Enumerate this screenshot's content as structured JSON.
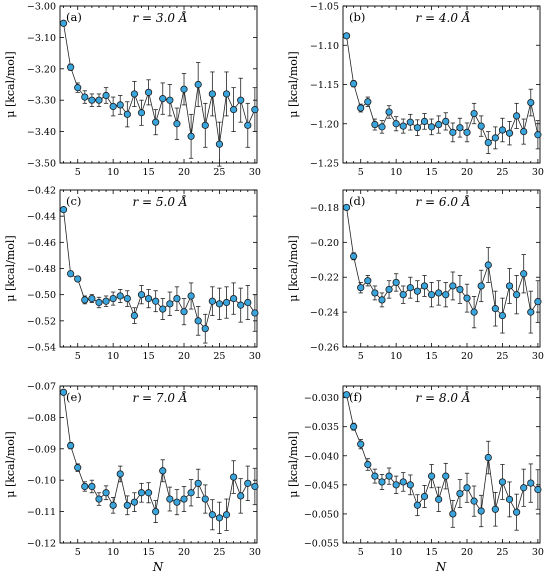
{
  "xlabel": "N",
  "ylabel": "μ [kcal/mol]",
  "chart_data": [
    {
      "type": "scatter",
      "panel": "(a)",
      "title": "r = 3.0 Å",
      "ylabel": "μ [kcal/mol]",
      "xlim": [
        2.5,
        30.3
      ],
      "ylim": [
        -3.5,
        -3.0
      ],
      "yticks": [
        -3.0,
        -3.1,
        -3.2,
        -3.3,
        -3.4,
        -3.5
      ],
      "ytick_labels": [
        "−3.00",
        "−3.10",
        "−3.20",
        "−3.30",
        "−3.40",
        "−3.50"
      ],
      "xticks": [
        5,
        10,
        15,
        20,
        25,
        30
      ],
      "x": [
        3,
        4,
        5,
        6,
        7,
        8,
        9,
        10,
        11,
        12,
        13,
        14,
        15,
        16,
        17,
        18,
        19,
        20,
        21,
        22,
        23,
        24,
        25,
        26,
        27,
        28,
        29,
        30
      ],
      "y": [
        -3.055,
        -3.195,
        -3.26,
        -3.29,
        -3.3,
        -3.3,
        -3.285,
        -3.32,
        -3.315,
        -3.345,
        -3.28,
        -3.34,
        -3.275,
        -3.37,
        -3.295,
        -3.3,
        -3.375,
        -3.265,
        -3.415,
        -3.25,
        -3.38,
        -3.28,
        -3.44,
        -3.28,
        -3.33,
        -3.3,
        -3.38,
        -3.33
      ],
      "err": [
        0.005,
        0.01,
        0.015,
        0.02,
        0.02,
        0.02,
        0.025,
        0.03,
        0.03,
        0.04,
        0.04,
        0.04,
        0.04,
        0.04,
        0.05,
        0.05,
        0.05,
        0.05,
        0.07,
        0.07,
        0.07,
        0.07,
        0.07,
        0.07,
        0.07,
        0.07,
        0.07,
        0.07
      ]
    },
    {
      "type": "scatter",
      "panel": "(b)",
      "title": "r = 4.0 Å",
      "ylabel": "μ [kcal/mol]",
      "xlim": [
        2.5,
        30.3
      ],
      "ylim": [
        -1.25,
        -1.05
      ],
      "yticks": [
        -1.05,
        -1.1,
        -1.15,
        -1.2,
        -1.25
      ],
      "ytick_labels": [
        "−1.05",
        "−1.10",
        "−1.15",
        "−1.20",
        "−1.25"
      ],
      "xticks": [
        5,
        10,
        15,
        20,
        25,
        30
      ],
      "x": [
        3,
        4,
        5,
        6,
        7,
        8,
        9,
        10,
        11,
        12,
        13,
        14,
        15,
        16,
        17,
        18,
        19,
        20,
        21,
        22,
        23,
        24,
        25,
        26,
        27,
        28,
        29,
        30
      ],
      "y": [
        -1.088,
        -1.149,
        -1.18,
        -1.172,
        -1.201,
        -1.204,
        -1.185,
        -1.2,
        -1.203,
        -1.198,
        -1.205,
        -1.197,
        -1.204,
        -1.201,
        -1.197,
        -1.211,
        -1.205,
        -1.211,
        -1.187,
        -1.203,
        -1.224,
        -1.218,
        -1.208,
        -1.212,
        -1.19,
        -1.21,
        -1.173,
        -1.214
      ],
      "err": [
        0.002,
        0.004,
        0.005,
        0.006,
        0.007,
        0.008,
        0.008,
        0.009,
        0.009,
        0.01,
        0.01,
        0.01,
        0.01,
        0.011,
        0.011,
        0.012,
        0.012,
        0.012,
        0.013,
        0.013,
        0.014,
        0.014,
        0.015,
        0.015,
        0.016,
        0.016,
        0.017,
        0.018
      ]
    },
    {
      "type": "scatter",
      "panel": "(c)",
      "title": "r = 5.0 Å",
      "ylabel": "μ [kcal/mol]",
      "xlim": [
        2.5,
        30.3
      ],
      "ylim": [
        -0.54,
        -0.42
      ],
      "yticks": [
        -0.42,
        -0.44,
        -0.46,
        -0.48,
        -0.5,
        -0.52,
        -0.54
      ],
      "ytick_labels": [
        "−0.42",
        "−0.44",
        "−0.46",
        "−0.48",
        "−0.50",
        "−0.52",
        "−0.54"
      ],
      "xticks": [
        5,
        10,
        15,
        20,
        25,
        30
      ],
      "x": [
        3,
        4,
        5,
        6,
        7,
        8,
        9,
        10,
        11,
        12,
        13,
        14,
        15,
        16,
        17,
        18,
        19,
        20,
        21,
        22,
        23,
        24,
        25,
        26,
        27,
        28,
        29,
        30
      ],
      "y": [
        -0.435,
        -0.484,
        -0.488,
        -0.504,
        -0.503,
        -0.506,
        -0.505,
        -0.503,
        -0.501,
        -0.503,
        -0.516,
        -0.5,
        -0.503,
        -0.505,
        -0.511,
        -0.507,
        -0.503,
        -0.513,
        -0.501,
        -0.52,
        -0.526,
        -0.505,
        -0.507,
        -0.506,
        -0.503,
        -0.508,
        -0.506,
        -0.514
      ],
      "err": [
        0.001,
        0.002,
        0.002,
        0.003,
        0.003,
        0.004,
        0.004,
        0.005,
        0.005,
        0.006,
        0.006,
        0.007,
        0.007,
        0.008,
        0.008,
        0.009,
        0.009,
        0.01,
        0.01,
        0.011,
        0.011,
        0.011,
        0.012,
        0.012,
        0.012,
        0.013,
        0.013,
        0.014
      ]
    },
    {
      "type": "scatter",
      "panel": "(d)",
      "title": "r = 6.0 Å",
      "ylabel": "μ [kcal/mol]",
      "xlim": [
        2.5,
        30.3
      ],
      "ylim": [
        -0.26,
        -0.17
      ],
      "yticks": [
        -0.18,
        -0.2,
        -0.22,
        -0.24,
        -0.26
      ],
      "ytick_labels": [
        "−0.18",
        "−0.20",
        "−0.22",
        "−0.24",
        "−0.26"
      ],
      "xticks": [
        5,
        10,
        15,
        20,
        25,
        30
      ],
      "x": [
        3,
        4,
        5,
        6,
        7,
        8,
        9,
        10,
        11,
        12,
        13,
        14,
        15,
        16,
        17,
        18,
        19,
        20,
        21,
        22,
        23,
        24,
        25,
        26,
        27,
        28,
        29,
        30
      ],
      "y": [
        -0.18,
        -0.208,
        -0.226,
        -0.222,
        -0.229,
        -0.233,
        -0.227,
        -0.223,
        -0.23,
        -0.226,
        -0.228,
        -0.225,
        -0.23,
        -0.229,
        -0.23,
        -0.225,
        -0.227,
        -0.232,
        -0.24,
        -0.225,
        -0.213,
        -0.238,
        -0.242,
        -0.225,
        -0.23,
        -0.218,
        -0.24,
        -0.234
      ],
      "err": [
        0.001,
        0.002,
        0.003,
        0.003,
        0.004,
        0.004,
        0.005,
        0.005,
        0.005,
        0.006,
        0.006,
        0.006,
        0.007,
        0.007,
        0.007,
        0.008,
        0.008,
        0.008,
        0.009,
        0.009,
        0.01,
        0.01,
        0.01,
        0.01,
        0.011,
        0.011,
        0.012,
        0.012
      ]
    },
    {
      "type": "scatter",
      "panel": "(e)",
      "title": "r = 7.0 Å",
      "ylabel": "μ [kcal/mol]",
      "xlim": [
        2.5,
        30.3
      ],
      "ylim": [
        -0.12,
        -0.07
      ],
      "yticks": [
        -0.07,
        -0.08,
        -0.09,
        -0.1,
        -0.11,
        -0.12
      ],
      "ytick_labels": [
        "−0.07",
        "−0.08",
        "−0.09",
        "−0.10",
        "−0.11",
        "−0.12"
      ],
      "xticks": [
        5,
        10,
        15,
        20,
        25,
        30
      ],
      "x": [
        3,
        4,
        5,
        6,
        7,
        8,
        9,
        10,
        11,
        12,
        13,
        14,
        15,
        16,
        17,
        18,
        19,
        20,
        21,
        22,
        23,
        24,
        25,
        26,
        27,
        28,
        29,
        30
      ],
      "y": [
        -0.072,
        -0.089,
        -0.096,
        -0.102,
        -0.102,
        -0.106,
        -0.104,
        -0.108,
        -0.098,
        -0.108,
        -0.107,
        -0.104,
        -0.104,
        -0.11,
        -0.097,
        -0.106,
        -0.107,
        -0.106,
        -0.104,
        -0.101,
        -0.106,
        -0.111,
        -0.112,
        -0.111,
        -0.099,
        -0.105,
        -0.101,
        -0.102
      ],
      "err": [
        0.0005,
        0.001,
        0.0012,
        0.0015,
        0.002,
        0.002,
        0.0022,
        0.0025,
        0.0025,
        0.003,
        0.003,
        0.003,
        0.0032,
        0.0035,
        0.0035,
        0.0038,
        0.004,
        0.004,
        0.0042,
        0.0045,
        0.0045,
        0.0048,
        0.005,
        0.005,
        0.0052,
        0.0055,
        0.0055,
        0.0058
      ]
    },
    {
      "type": "scatter",
      "panel": "(f)",
      "title": "r = 8.0 Å",
      "ylabel": "μ [kcal/mol]",
      "xlim": [
        2.5,
        30.3
      ],
      "ylim": [
        -0.055,
        -0.028
      ],
      "yticks": [
        -0.03,
        -0.035,
        -0.04,
        -0.045,
        -0.05,
        -0.055
      ],
      "ytick_labels": [
        "−0.030",
        "−0.035",
        "−0.040",
        "−0.045",
        "−0.050",
        "−0.055"
      ],
      "xticks": [
        5,
        10,
        15,
        20,
        25,
        30
      ],
      "x": [
        3,
        4,
        5,
        6,
        7,
        8,
        9,
        10,
        11,
        12,
        13,
        14,
        15,
        16,
        17,
        18,
        19,
        20,
        21,
        22,
        23,
        24,
        25,
        26,
        27,
        28,
        29,
        30
      ],
      "y": [
        -0.0295,
        -0.035,
        -0.038,
        -0.0415,
        -0.0435,
        -0.0445,
        -0.0435,
        -0.045,
        -0.0445,
        -0.045,
        -0.0485,
        -0.047,
        -0.0435,
        -0.0475,
        -0.0435,
        -0.05,
        -0.0465,
        -0.0455,
        -0.0478,
        -0.0495,
        -0.0403,
        -0.0492,
        -0.0445,
        -0.0475,
        -0.0497,
        -0.0455,
        -0.0447,
        -0.0458
      ],
      "err": [
        0.0003,
        0.0006,
        0.0008,
        0.001,
        0.0012,
        0.0013,
        0.0014,
        0.0015,
        0.0016,
        0.0017,
        0.0018,
        0.0019,
        0.002,
        0.0021,
        0.0022,
        0.0023,
        0.0024,
        0.0025,
        0.0026,
        0.0027,
        0.0028,
        0.0029,
        0.003,
        0.003,
        0.0031,
        0.0032,
        0.0033,
        0.0034
      ]
    }
  ]
}
